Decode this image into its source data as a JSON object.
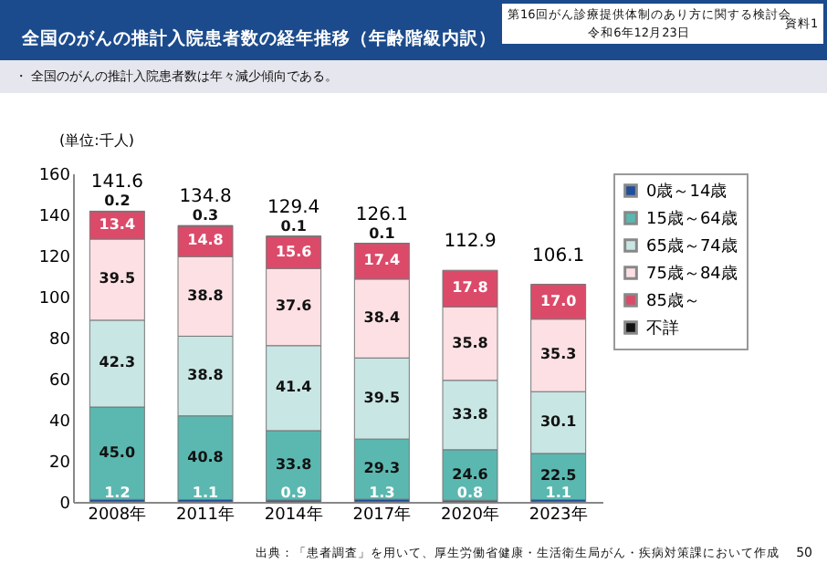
{
  "chart_data": {
    "type": "bar",
    "stacked": true,
    "title": "全国のがんの推計入院患者数の経年推移（年齢階級内訳）",
    "subtitle": "・ 全国のがんの推計入院患者数は年々減少傾向である。",
    "ylabel": "(単位:千人)",
    "categories": [
      "2008年",
      "2011年",
      "2014年",
      "2017年",
      "2020年",
      "2023年"
    ],
    "series": [
      {
        "name": "0歳～14歳",
        "color": "#1f4e9a",
        "values": [
          1.2,
          1.1,
          0.9,
          1.3,
          0.8,
          1.1
        ],
        "value_labels": [
          "1.2",
          "1.1",
          "0.9",
          "1.3",
          "0.8",
          "1.1"
        ]
      },
      {
        "name": "15歳～64歳",
        "color": "#5bb8b0",
        "values": [
          45.0,
          40.8,
          33.8,
          29.3,
          24.6,
          22.5
        ],
        "value_labels": [
          "45.0",
          "40.8",
          "33.8",
          "29.3",
          "24.6",
          "22.5"
        ]
      },
      {
        "name": "65歳～74歳",
        "color": "#c8e6e4",
        "values": [
          42.3,
          38.8,
          41.4,
          39.5,
          33.8,
          30.1
        ],
        "value_labels": [
          "42.3",
          "38.8",
          "41.4",
          "39.5",
          "33.8",
          "30.1"
        ]
      },
      {
        "name": "75歳～84歳",
        "color": "#fde0e4",
        "values": [
          39.5,
          38.8,
          37.6,
          38.4,
          35.8,
          35.3
        ],
        "value_labels": [
          "39.5",
          "38.8",
          "37.6",
          "38.4",
          "35.8",
          "35.3"
        ]
      },
      {
        "name": "85歳～",
        "color": "#dc4a6a",
        "values": [
          13.4,
          14.8,
          15.6,
          17.4,
          17.8,
          17.0
        ],
        "value_labels": [
          "13.4",
          "14.8",
          "15.6",
          "17.4",
          "17.8",
          "17.0"
        ]
      },
      {
        "name": "不詳",
        "color": "#111111",
        "values": [
          0.2,
          0.3,
          0.1,
          0.1,
          null,
          null
        ],
        "value_labels": [
          "0.2",
          "0.3",
          "0.1",
          "0.1",
          null,
          null
        ]
      }
    ],
    "data_labels": true,
    "totals": [
      "141.6",
      "134.8",
      "129.4",
      "126.1",
      "112.9",
      "106.1"
    ],
    "ylim": [
      0,
      160
    ],
    "yticks": [
      0,
      20,
      40,
      60,
      80,
      100,
      120,
      140,
      160
    ],
    "grid": false,
    "legend": "right",
    "annotations": [
      "第16回がん診療提供体制のあり方に関する検討会",
      "令和6年12月23日",
      "資料1",
      "出典：「患者調査」を用いて、厚生労働省健康・生活衛生局がん・疾病対策課において作成",
      "50"
    ]
  }
}
